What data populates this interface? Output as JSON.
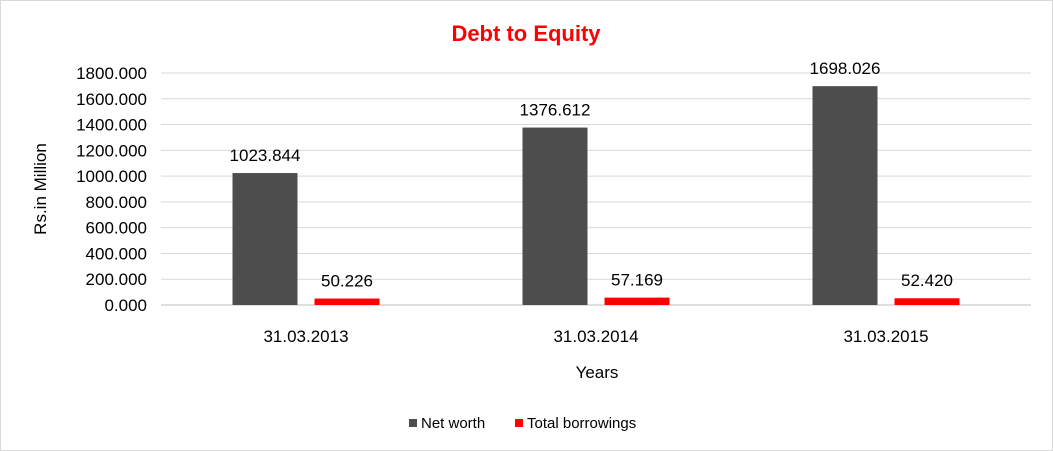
{
  "chart_data": {
    "type": "bar",
    "title": "Debt to Equity",
    "xlabel": "Years",
    "ylabel": "Rs.in Million",
    "categories": [
      "31.03.2013",
      "31.03.2014",
      "31.03.2015"
    ],
    "series": [
      {
        "name": "Net worth",
        "values": [
          1023.844,
          1376.612,
          1698.026
        ],
        "labels": [
          "1023.844",
          "1376.612",
          "1698.026"
        ],
        "color": "#4d4d4d"
      },
      {
        "name": "Total borrowings",
        "values": [
          50.226,
          57.169,
          52.42
        ],
        "labels": [
          "50.226",
          "57.169",
          "52.420"
        ],
        "color": "#ff0000"
      }
    ],
    "ylim": [
      0,
      1800
    ],
    "yticks": [
      "0.000",
      "200.000",
      "400.000",
      "600.000",
      "800.000",
      "1000.000",
      "1200.000",
      "1400.000",
      "1600.000",
      "1800.000"
    ],
    "grid": true,
    "legend_position": "bottom",
    "title_color": "#ff0000"
  }
}
